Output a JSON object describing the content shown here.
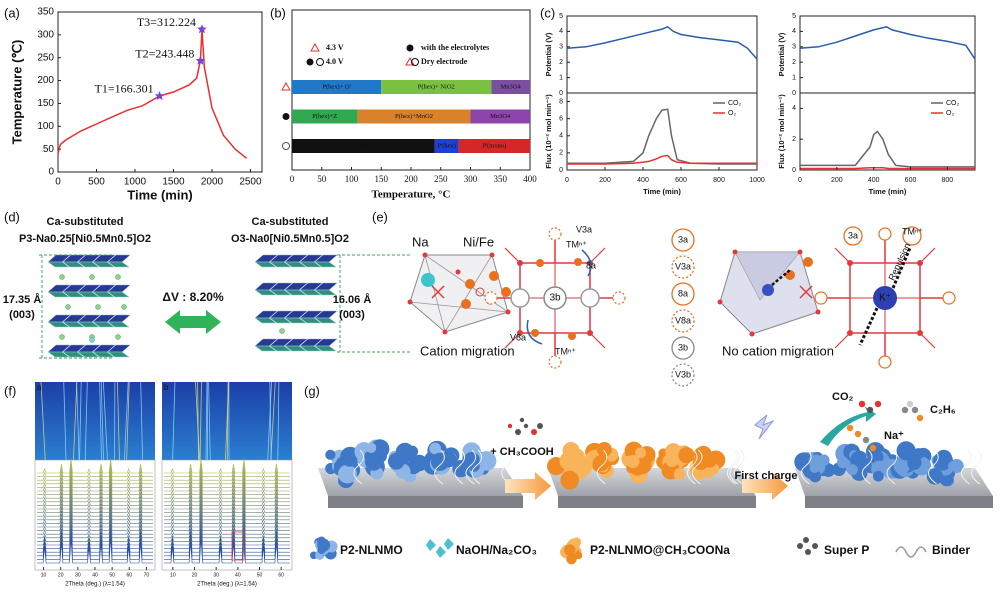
{
  "panel_labels": [
    "(a)",
    "(b)",
    "(c)",
    "(d)",
    "(e)",
    "(f)",
    "(g)"
  ],
  "chart_data": [
    {
      "type": "line",
      "x_label": "Time (min)",
      "y_label": "Temperature (℃)",
      "xlim": [
        0,
        2650
      ],
      "ylim": [
        0,
        350
      ],
      "xticks": [
        0,
        500,
        1000,
        1500,
        2000,
        2500
      ],
      "yticks": [
        0,
        50,
        100,
        150,
        200,
        250,
        300,
        350
      ],
      "series": [
        {
          "color": "#e8302f",
          "x": [
            0,
            30,
            100,
            300,
            500,
            700,
            900,
            1100,
            1320,
            1500,
            1700,
            1800,
            1850,
            1870,
            1900,
            2000,
            2150,
            2300,
            2450
          ],
          "values": [
            40,
            60,
            70,
            90,
            105,
            120,
            135,
            145,
            166.301,
            175,
            190,
            205,
            243.448,
            312.224,
            230,
            140,
            80,
            50,
            30
          ]
        }
      ],
      "annotations": [
        {
          "label": "T1=166.301",
          "x": 1320,
          "y": 166.301,
          "color": "#7b3fe4"
        },
        {
          "label": "T2=243.448",
          "x": 1850,
          "y": 243.448,
          "color": "#7b3fe4"
        },
        {
          "label": "T3=312.224",
          "x": 1870,
          "y": 312.224,
          "color": "#7b3fe4"
        }
      ]
    },
    {
      "type": "range_bar",
      "x_label": "Temperature, °C",
      "xlim": [
        0,
        400
      ],
      "xticks": [
        0,
        50,
        100,
        150,
        200,
        250,
        300,
        350,
        400
      ],
      "legend": [
        {
          "label": "4.3 V",
          "marker": "triangle",
          "color": "#e8302f"
        },
        {
          "label": "4.0 V",
          "marker": "dot-circle",
          "color": "#111111"
        },
        {
          "label": "with the electrolytes",
          "marker": "dot",
          "color": "#111111"
        },
        {
          "label": "Dry electrode",
          "marker": "triangle-circle",
          "color": "#111111"
        }
      ],
      "rows": [
        {
          "marker": "triangle",
          "segments": [
            {
              "label": "P(hex)+ O'",
              "color": "#1f78c8",
              "value": 150
            },
            {
              "label": "P(hex)+ NiO2",
              "color": "#7ac142",
              "value": 185
            },
            {
              "label": "Mn3O4",
              "color": "#7b4fa0",
              "value": 65
            }
          ]
        },
        {
          "marker": "dot",
          "segments": [
            {
              "label": "P(hex)+Z",
              "color": "#2fa84f",
              "value": 110
            },
            {
              "label": "P(hex)+MnO2",
              "color": "#d9822b",
              "value": 190
            },
            {
              "label": "Mn3O4",
              "color": "#8e44ad",
              "value": 100
            }
          ]
        },
        {
          "marker": "circle",
          "segments": [
            {
              "label": "P(hex)",
              "color": "#111111",
              "value": 240
            },
            {
              "label": "P'(hex)",
              "color": "#1d3fd6",
              "value": 40
            },
            {
              "label": "P'(mono)",
              "color": "#d62728",
              "value": 120
            }
          ]
        }
      ]
    },
    {
      "type": "line",
      "x_label": "Time (min)",
      "xlim": [
        0,
        1000
      ],
      "xticks": [
        0,
        200,
        400,
        600,
        800,
        1000
      ],
      "subplots": [
        {
          "y_label": "Potential (V)",
          "ylim": [
            0,
            5
          ],
          "yticks": [
            0,
            1,
            2,
            3,
            4,
            5
          ],
          "series": [
            {
              "color": "#2a5caa",
              "x": [
                0,
                100,
                200,
                300,
                400,
                500,
                530,
                560,
                600,
                700,
                800,
                900,
                950,
                1000
              ],
              "values": [
                2.9,
                3.0,
                3.25,
                3.55,
                3.85,
                4.15,
                4.3,
                4.0,
                3.8,
                3.6,
                3.45,
                3.3,
                2.9,
                2.2
              ]
            }
          ]
        },
        {
          "y_label": "Flux (10⁻² mol min⁻¹)",
          "ylim": [
            0,
            9
          ],
          "yticks": [
            0,
            2,
            4,
            6,
            8
          ],
          "legend": "upper right",
          "series": [
            {
              "name": "CO₂",
              "color": "#666666",
              "x": [
                0,
                200,
                350,
                400,
                430,
                470,
                500,
                530,
                550,
                580,
                650,
                800,
                1000
              ],
              "values": [
                0.8,
                0.8,
                1.0,
                2.0,
                4.0,
                6.0,
                7.0,
                7.1,
                4.0,
                1.2,
                0.8,
                0.7,
                0.7
              ]
            },
            {
              "name": "O₂",
              "color": "#e8302f",
              "x": [
                0,
                200,
                350,
                400,
                430,
                470,
                500,
                530,
                550,
                580,
                650,
                800,
                1000
              ],
              "values": [
                0.7,
                0.7,
                0.8,
                0.9,
                1.0,
                1.3,
                1.6,
                1.7,
                1.2,
                0.9,
                0.8,
                0.8,
                0.8
              ]
            }
          ]
        }
      ]
    },
    {
      "type": "line",
      "x_label": "Time (min)",
      "xlim": [
        0,
        950
      ],
      "xticks": [
        0,
        200,
        400,
        600,
        800
      ],
      "subplots": [
        {
          "y_label": "Potential (V)",
          "ylim": [
            0,
            5
          ],
          "yticks": [
            0,
            1,
            2,
            3,
            4,
            5
          ],
          "series": [
            {
              "color": "#2a5caa",
              "x": [
                0,
                100,
                200,
                300,
                400,
                470,
                500,
                600,
                700,
                800,
                900,
                950
              ],
              "values": [
                2.9,
                3.0,
                3.3,
                3.7,
                4.1,
                4.3,
                4.1,
                3.8,
                3.55,
                3.35,
                3.1,
                2.2
              ]
            }
          ]
        },
        {
          "y_label": "Flux (10⁻² mol min⁻¹)",
          "ylim": [
            0,
            5
          ],
          "yticks": [
            0,
            2,
            4
          ],
          "legend": "upper right",
          "series": [
            {
              "name": "CO₂",
              "color": "#666666",
              "x": [
                0,
                300,
                380,
                400,
                420,
                450,
                480,
                520,
                600,
                950
              ],
              "values": [
                0.3,
                0.3,
                1.5,
                2.3,
                2.5,
                2.0,
                1.0,
                0.3,
                0.2,
                0.2
              ]
            },
            {
              "name": "O₂",
              "color": "#e8302f",
              "x": [
                0,
                300,
                380,
                400,
                420,
                450,
                480,
                520,
                600,
                950
              ],
              "values": [
                0.1,
                0.1,
                0.15,
                0.15,
                0.15,
                0.15,
                0.1,
                0.1,
                0.1,
                0.1
              ]
            }
          ]
        }
      ]
    }
  ],
  "panel_d": {
    "left_title": [
      "Ca-substituted",
      "P3-Na0.25[Ni0.5Mn0.5]O2"
    ],
    "right_title": [
      "Ca-substituted",
      "O3-Na0[Ni0.5Mn0.5]O2"
    ],
    "left_spacing": "17.35 Å",
    "left_plane": "(003)",
    "right_spacing": "16.06 Å",
    "right_plane": "(003)",
    "volume_change": "ΔV : 8.20%"
  },
  "panel_e": {
    "na": "Na",
    "ni_fe": "Ni/Fe",
    "left_caption": "Cation migration",
    "right_caption": "No cation migration",
    "tm_top": "TMⁿ⁺",
    "tm_bottom": "TMⁿ⁺",
    "tm_right": "TMⁿ⁺",
    "center": "3b",
    "v3a": "V3a",
    "site_8a": "8a",
    "v8a": "V8a",
    "site_3a": "3a",
    "repulsion": "Repulsion",
    "k": "K⁺",
    "legend": [
      "3a",
      "V3a",
      "8a",
      "V8a",
      "3b",
      "V3b"
    ]
  },
  "panel_f": {
    "sub_labels": [
      "a",
      "b"
    ],
    "plots": [
      {
        "x_label": "2Theta (deg.) (λ=1.54)",
        "xlim": [
          5,
          75
        ],
        "xticks": [
          10,
          20,
          30,
          40,
          50,
          60,
          70
        ]
      },
      {
        "x_label": "2Theta (deg.) (λ=1.54)",
        "xlim": [
          5,
          65
        ],
        "xticks": [
          10,
          20,
          30,
          40,
          50,
          60
        ]
      }
    ]
  },
  "panel_g": {
    "reagent": "+ CH₃COOH",
    "step": "First charge",
    "products": [
      "CO₂",
      "C₂H₆",
      "Na⁺"
    ],
    "legend": [
      "P2-NLNMO",
      "NaOH/Na₂CO₃",
      "P2-NLNMO@CH₃COONa",
      "Super P",
      "Binder"
    ]
  }
}
